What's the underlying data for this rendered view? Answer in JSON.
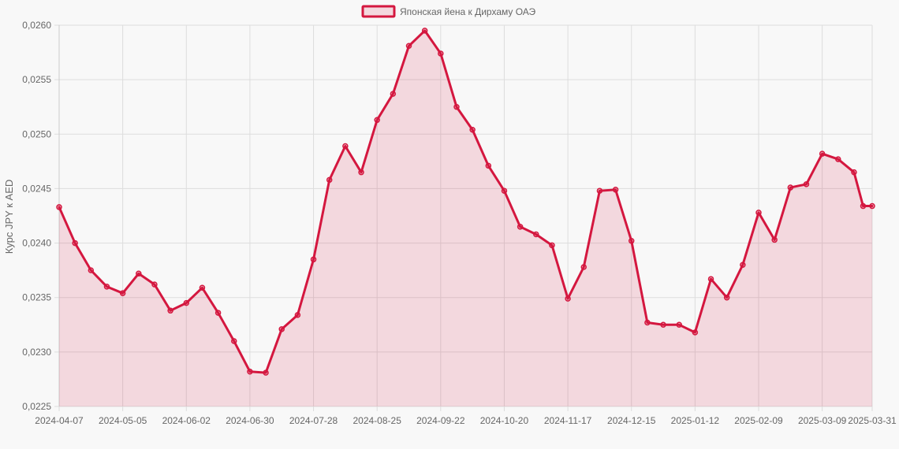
{
  "chart_data": {
    "type": "line",
    "ylabel": "Курс JPY к AED",
    "legend": {
      "position": "top-center"
    },
    "grid": true,
    "ylim": [
      0.0225,
      0.026
    ],
    "y_ticks": [
      "0,0225",
      "0,0230",
      "0,0235",
      "0,0240",
      "0,0245",
      "0,0250",
      "0,0255",
      "0,0260"
    ],
    "x_ticks": [
      "2024-04-07",
      "2024-05-05",
      "2024-06-02",
      "2024-06-30",
      "2024-07-28",
      "2024-08-25",
      "2024-09-22",
      "2024-10-20",
      "2024-11-17",
      "2024-12-15",
      "2025-01-12",
      "2025-02-09",
      "2025-03-09",
      "2025-03-31"
    ],
    "colors": {
      "line": "#d4173f",
      "fill": "rgba(212,23,63,0.14)",
      "grid": "#dddddd",
      "axis": "#cccccc"
    },
    "series": [
      {
        "name": "Японская йена к Дирхаму ОАЭ",
        "points": [
          [
            "2024-04-07",
            0.02433
          ],
          [
            "2024-04-14",
            0.024
          ],
          [
            "2024-04-21",
            0.02375
          ],
          [
            "2024-04-28",
            0.0236
          ],
          [
            "2024-05-05",
            0.02354
          ],
          [
            "2024-05-12",
            0.02372
          ],
          [
            "2024-05-19",
            0.02362
          ],
          [
            "2024-05-26",
            0.02338
          ],
          [
            "2024-06-02",
            0.02345
          ],
          [
            "2024-06-09",
            0.02359
          ],
          [
            "2024-06-16",
            0.02336
          ],
          [
            "2024-06-23",
            0.0231
          ],
          [
            "2024-06-30",
            0.02282
          ],
          [
            "2024-07-07",
            0.02281
          ],
          [
            "2024-07-14",
            0.02321
          ],
          [
            "2024-07-21",
            0.02334
          ],
          [
            "2024-07-28",
            0.02385
          ],
          [
            "2024-08-04",
            0.02458
          ],
          [
            "2024-08-11",
            0.02489
          ],
          [
            "2024-08-18",
            0.02465
          ],
          [
            "2024-08-25",
            0.02513
          ],
          [
            "2024-09-01",
            0.02537
          ],
          [
            "2024-09-08",
            0.02581
          ],
          [
            "2024-09-15",
            0.02595
          ],
          [
            "2024-09-22",
            0.02574
          ],
          [
            "2024-09-29",
            0.02525
          ],
          [
            "2024-10-06",
            0.02504
          ],
          [
            "2024-10-13",
            0.02471
          ],
          [
            "2024-10-20",
            0.02448
          ],
          [
            "2024-10-27",
            0.02415
          ],
          [
            "2024-11-03",
            0.02408
          ],
          [
            "2024-11-10",
            0.02398
          ],
          [
            "2024-11-17",
            0.02349
          ],
          [
            "2024-11-24",
            0.02378
          ],
          [
            "2024-12-01",
            0.02448
          ],
          [
            "2024-12-08",
            0.02449
          ],
          [
            "2024-12-15",
            0.02402
          ],
          [
            "2024-12-22",
            0.02327
          ],
          [
            "2024-12-29",
            0.02325
          ],
          [
            "2025-01-05",
            0.02325
          ],
          [
            "2025-01-12",
            0.02318
          ],
          [
            "2025-01-19",
            0.02367
          ],
          [
            "2025-01-26",
            0.0235
          ],
          [
            "2025-02-02",
            0.0238
          ],
          [
            "2025-02-09",
            0.02428
          ],
          [
            "2025-02-16",
            0.02403
          ],
          [
            "2025-02-23",
            0.02451
          ],
          [
            "2025-03-02",
            0.02454
          ],
          [
            "2025-03-09",
            0.02482
          ],
          [
            "2025-03-16",
            0.02477
          ],
          [
            "2025-03-23",
            0.02465
          ],
          [
            "2025-03-27",
            0.02434
          ],
          [
            "2025-03-31",
            0.02434
          ]
        ]
      }
    ]
  }
}
